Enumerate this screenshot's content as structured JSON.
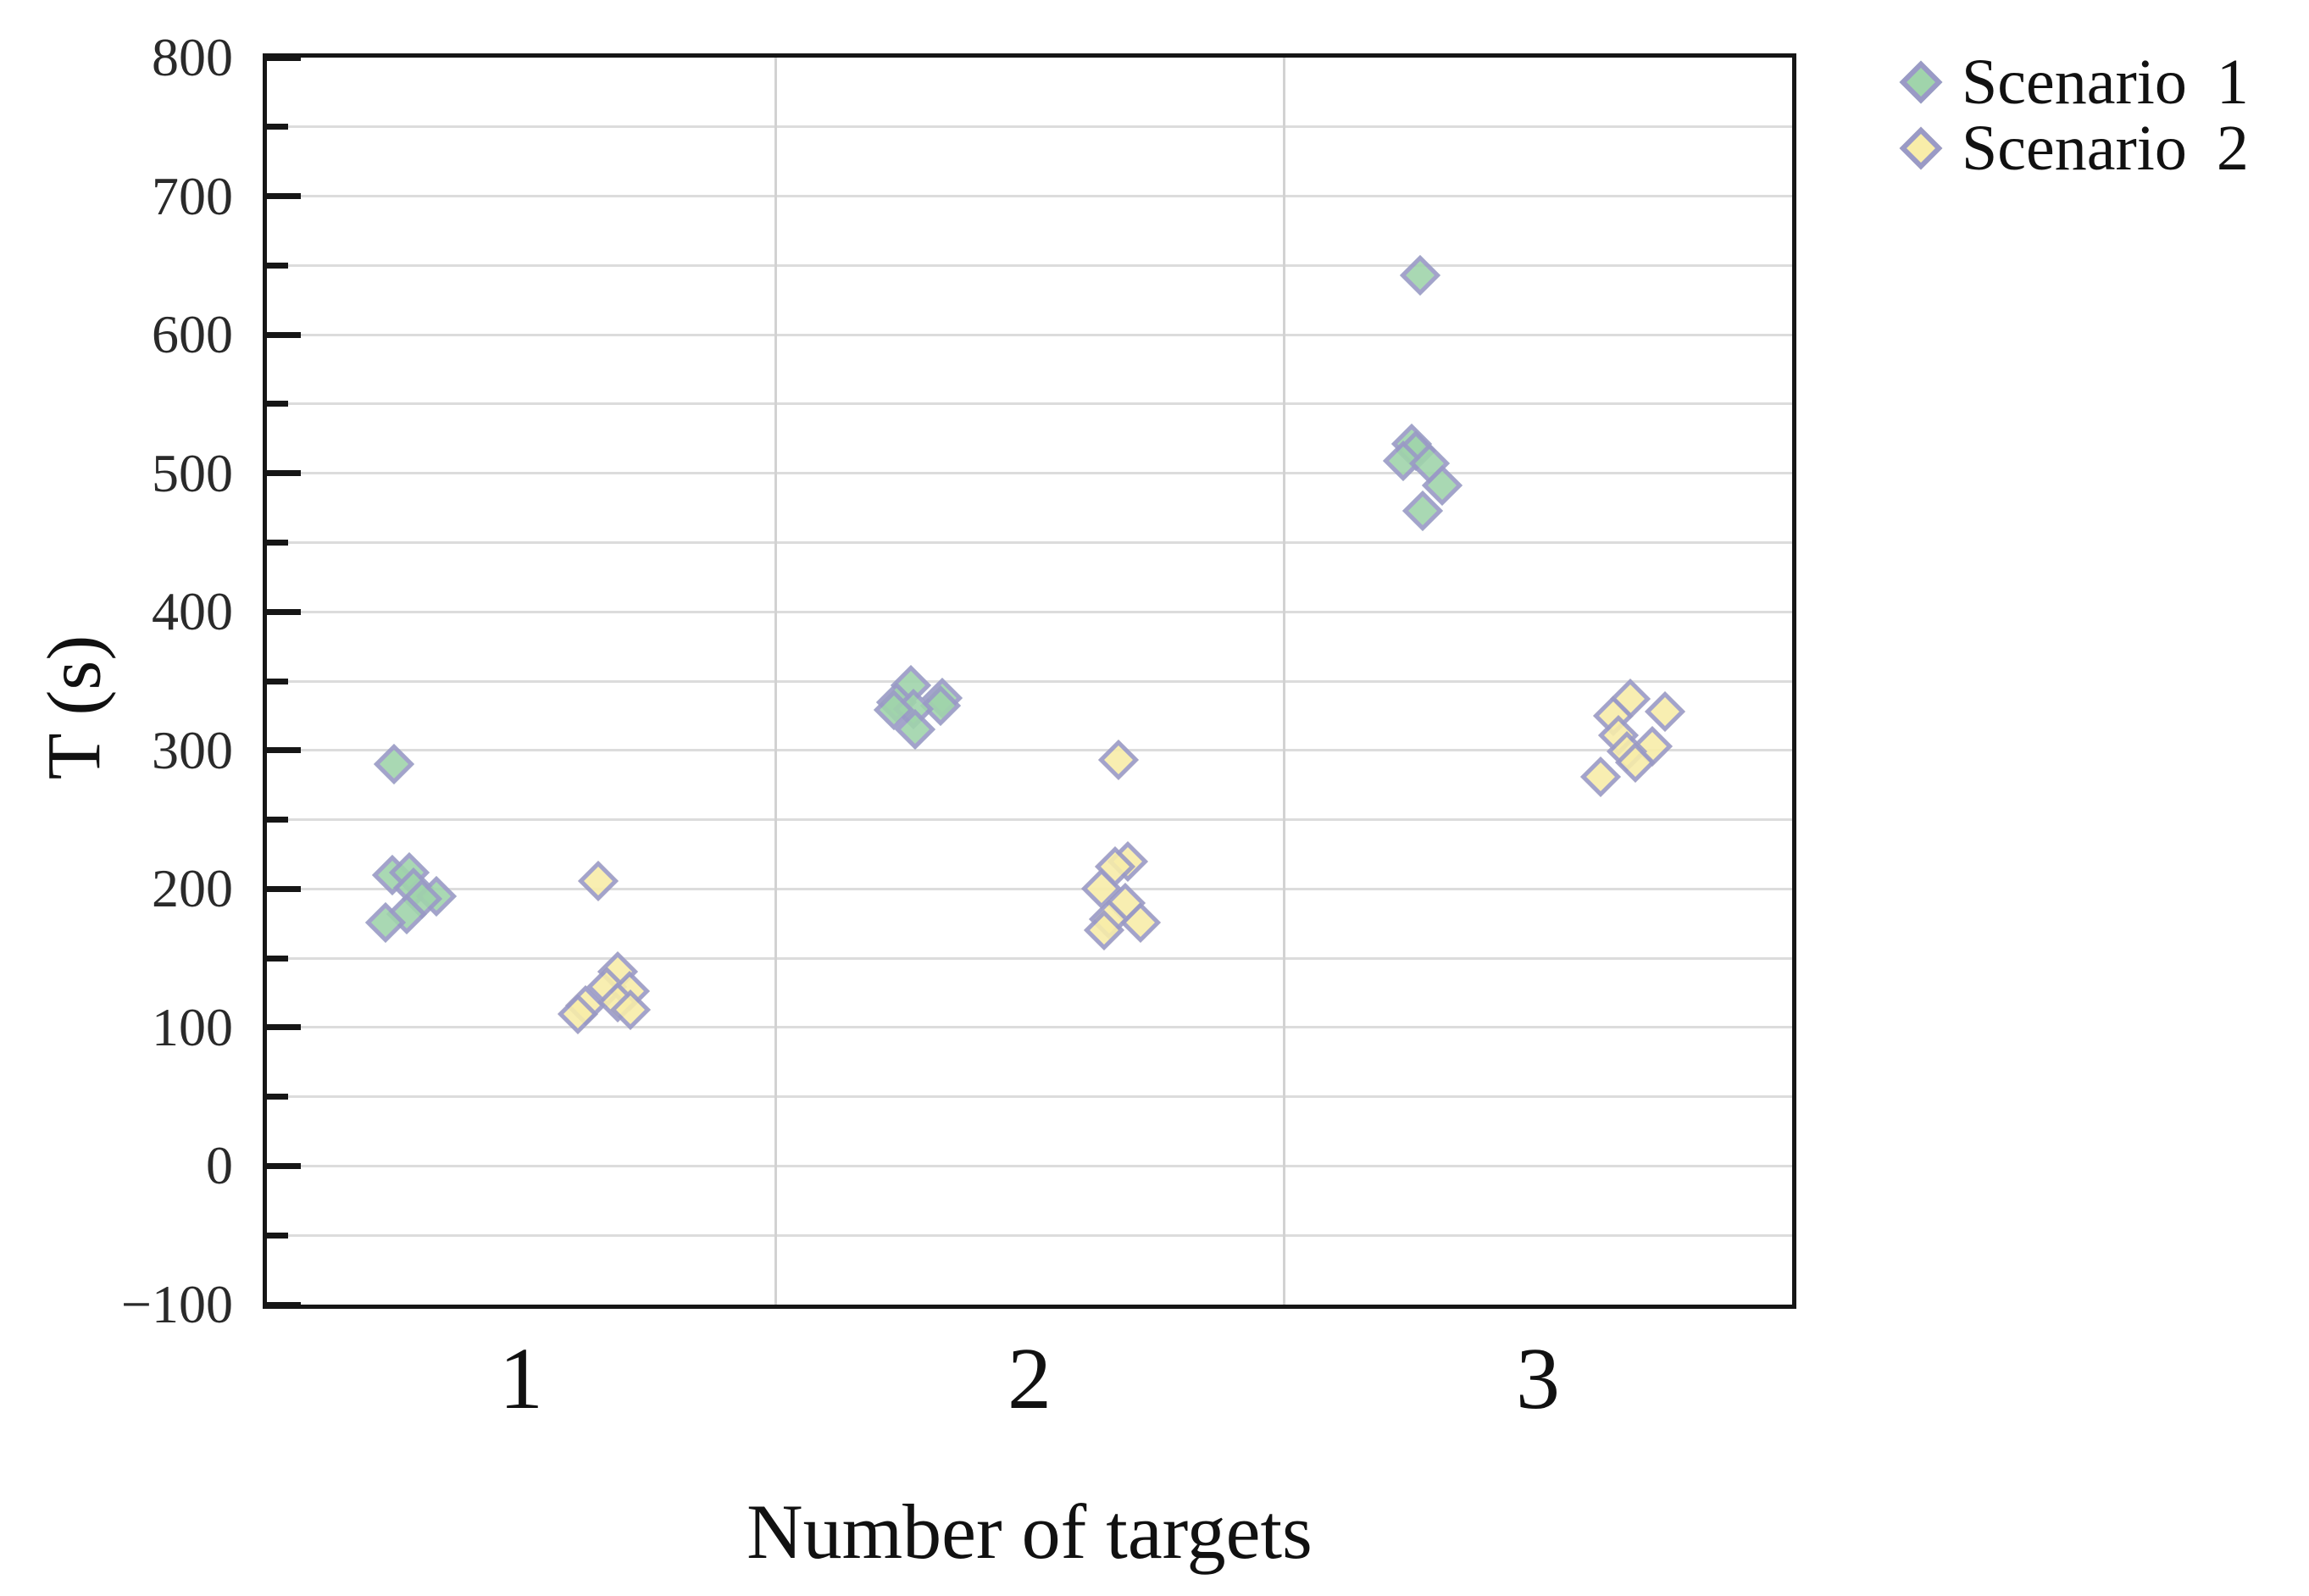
{
  "chart_data": {
    "type": "scatter",
    "title": "",
    "xlabel": "Number of targets",
    "ylabel": "T (s)",
    "x_categories": [
      "1",
      "2",
      "3"
    ],
    "ylim": [
      -100,
      800
    ],
    "y_tick_labels": [
      "800",
      "700",
      "600",
      "500",
      "400",
      "300",
      "200",
      "100",
      "0",
      "−100"
    ],
    "y_major_tick_step": 100,
    "y_minor_tick_step": 50,
    "grid": {
      "horizontal_step": 50,
      "horizontal_color": "#dcdcdc",
      "vertical_separators": [
        1.5,
        2.5
      ]
    },
    "legend_position": "top-right-outside",
    "marker": "diamond",
    "marker_edge_color": "#9a9ac6",
    "series": [
      {
        "name": "Scenario 1",
        "fill": "#a0d4ab",
        "points": [
          {
            "x": 1,
            "dx": -0.25,
            "t": 290
          },
          {
            "x": 1,
            "dx": -0.253,
            "t": 210
          },
          {
            "x": 1,
            "dx": -0.22,
            "t": 212
          },
          {
            "x": 1,
            "dx": -0.212,
            "t": 201
          },
          {
            "x": 1,
            "dx": -0.166,
            "t": 195
          },
          {
            "x": 1,
            "dx": -0.195,
            "t": 193
          },
          {
            "x": 1,
            "dx": -0.225,
            "t": 182
          },
          {
            "x": 1,
            "dx": -0.267,
            "t": 176
          },
          {
            "x": 2,
            "dx": -0.233,
            "t": 347
          },
          {
            "x": 2,
            "dx": -0.172,
            "t": 338
          },
          {
            "x": 2,
            "dx": -0.262,
            "t": 335
          },
          {
            "x": 2,
            "dx": -0.175,
            "t": 332
          },
          {
            "x": 2,
            "dx": -0.228,
            "t": 330
          },
          {
            "x": 2,
            "dx": -0.266,
            "t": 329
          },
          {
            "x": 2,
            "dx": -0.225,
            "t": 315
          },
          {
            "x": 3,
            "dx": -0.232,
            "t": 643
          },
          {
            "x": 3,
            "dx": -0.248,
            "t": 521
          },
          {
            "x": 3,
            "dx": -0.24,
            "t": 516
          },
          {
            "x": 3,
            "dx": -0.265,
            "t": 509
          },
          {
            "x": 3,
            "dx": -0.214,
            "t": 507
          },
          {
            "x": 3,
            "dx": -0.189,
            "t": 491
          },
          {
            "x": 3,
            "dx": -0.227,
            "t": 473
          }
        ]
      },
      {
        "name": "Scenario 2",
        "fill": "#f8eda9",
        "points": [
          {
            "x": 1,
            "dx": 0.152,
            "t": 206
          },
          {
            "x": 1,
            "dx": 0.19,
            "t": 140
          },
          {
            "x": 1,
            "dx": 0.169,
            "t": 129
          },
          {
            "x": 1,
            "dx": 0.214,
            "t": 126
          },
          {
            "x": 1,
            "dx": 0.19,
            "t": 118
          },
          {
            "x": 1,
            "dx": 0.127,
            "t": 116
          },
          {
            "x": 1,
            "dx": 0.215,
            "t": 113
          },
          {
            "x": 1,
            "dx": 0.111,
            "t": 110
          },
          {
            "x": 2,
            "dx": 0.175,
            "t": 293
          },
          {
            "x": 2,
            "dx": 0.194,
            "t": 220
          },
          {
            "x": 2,
            "dx": 0.169,
            "t": 216
          },
          {
            "x": 2,
            "dx": 0.142,
            "t": 200
          },
          {
            "x": 2,
            "dx": 0.189,
            "t": 190
          },
          {
            "x": 2,
            "dx": 0.156,
            "t": 178
          },
          {
            "x": 2,
            "dx": 0.219,
            "t": 176
          },
          {
            "x": 2,
            "dx": 0.147,
            "t": 170
          },
          {
            "x": 3,
            "dx": 0.182,
            "t": 337
          },
          {
            "x": 3,
            "dx": 0.25,
            "t": 328
          },
          {
            "x": 3,
            "dx": 0.149,
            "t": 325
          },
          {
            "x": 3,
            "dx": 0.159,
            "t": 311
          },
          {
            "x": 3,
            "dx": 0.225,
            "t": 303
          },
          {
            "x": 3,
            "dx": 0.175,
            "t": 299
          },
          {
            "x": 3,
            "dx": 0.192,
            "t": 291
          },
          {
            "x": 3,
            "dx": 0.124,
            "t": 281
          }
        ]
      }
    ]
  }
}
